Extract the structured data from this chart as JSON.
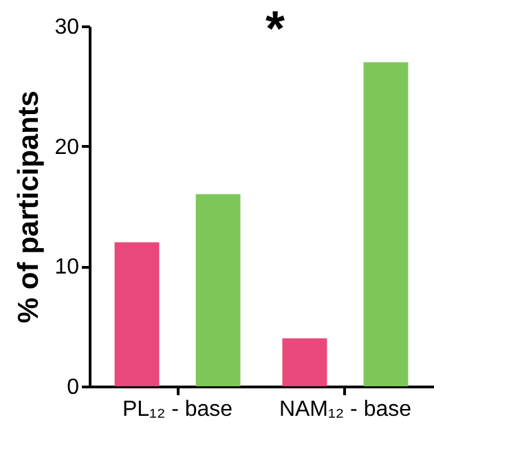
{
  "chart_data": {
    "type": "bar",
    "ylabel": "% of participants",
    "categories": [
      "PL₁₂ - base",
      "NAM₁₂ - base"
    ],
    "series": [
      {
        "color": "#e8487a",
        "values": [
          12,
          4
        ]
      },
      {
        "color": "#7dc75a",
        "values": [
          16,
          27
        ]
      }
    ],
    "ylim": [
      0,
      30
    ],
    "yticks": [
      0,
      10,
      20,
      30
    ],
    "grid": false,
    "legend": false,
    "annotations": [
      "*"
    ]
  }
}
